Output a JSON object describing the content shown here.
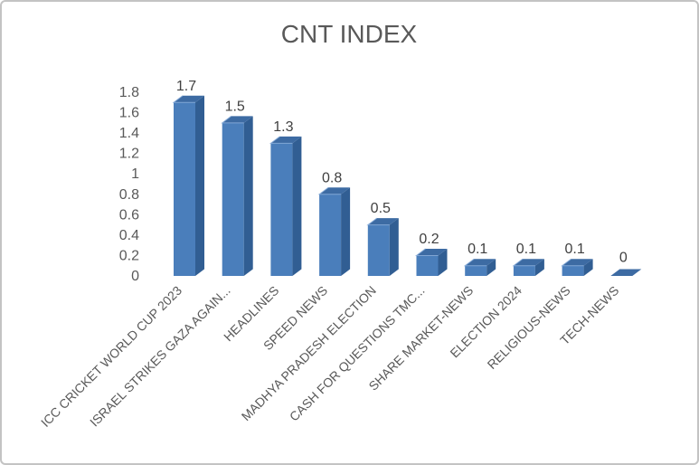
{
  "frame": {
    "background": "#ffffff",
    "border_color": "#c3c3c3"
  },
  "chart_data": {
    "type": "bar",
    "style": "3d-column",
    "title": "CNT INDEX",
    "categories": [
      "ICC CRICKET WORLD CUP 2023",
      "ISRAEL STRIKES GAZA AGAIN...",
      "HEADLINES",
      "SPEED NEWS",
      "MADHYA PRADESH ELECTION",
      "CASH FOR QUESTIONS TMC...",
      "SHARE MARKET-NEWS",
      "ELECTION 2024",
      "RELIGIOUS-NEWS",
      "TECH-NEWS"
    ],
    "values": [
      1.7,
      1.5,
      1.3,
      0.8,
      0.5,
      0.2,
      0.1,
      0.1,
      0.1,
      0
    ],
    "data_labels": [
      "1.7",
      "1.5",
      "1.3",
      "0.8",
      "0.5",
      "0.2",
      "0.1",
      "0.1",
      "0.1",
      "0"
    ],
    "y_ticks": [
      {
        "label": "1.8",
        "value": 1.8
      },
      {
        "label": "1.6",
        "value": 1.6
      },
      {
        "label": "1.4",
        "value": 1.4
      },
      {
        "label": "1.2",
        "value": 1.2
      },
      {
        "label": "1",
        "value": 1.0
      },
      {
        "label": "0.8",
        "value": 0.8
      },
      {
        "label": "0.6",
        "value": 0.6
      },
      {
        "label": "0.4",
        "value": 0.4
      },
      {
        "label": "0.2",
        "value": 0.2
      },
      {
        "label": "0",
        "value": 0
      }
    ],
    "ylim": [
      0,
      1.8
    ],
    "xlabel": "",
    "ylabel": "",
    "legend": "none",
    "gridlines": "off",
    "category_label_rotation_deg": -45,
    "colors": {
      "bar_front": "#4a7ebb",
      "bar_side": "#315e93",
      "bar_top": "#3d6ba3",
      "bar_edge_highlight": "#86abd8",
      "title_text": "#595959",
      "axis_text": "#595959",
      "data_label_text": "#404040"
    }
  }
}
